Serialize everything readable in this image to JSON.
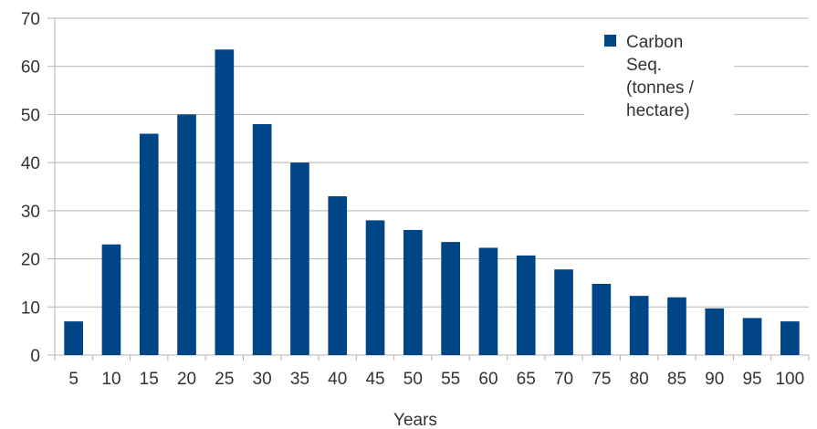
{
  "chart_data": {
    "type": "bar",
    "title": "",
    "xlabel": "Years",
    "ylabel": "",
    "categories": [
      "5",
      "10",
      "15",
      "20",
      "25",
      "30",
      "35",
      "40",
      "45",
      "50",
      "55",
      "60",
      "65",
      "70",
      "75",
      "80",
      "85",
      "90",
      "95",
      "100"
    ],
    "series": [
      {
        "name": "Carbon Seq. (tonnes / hectare)",
        "values": [
          7,
          23,
          46,
          50,
          63.5,
          48,
          40,
          33,
          28,
          26,
          23.5,
          22.3,
          20.7,
          17.8,
          14.8,
          12.3,
          12,
          9.7,
          7.7,
          7
        ],
        "color": "#004586"
      }
    ],
    "ylim": [
      0,
      70
    ],
    "yticks": [
      0,
      10,
      20,
      30,
      40,
      50,
      60,
      70
    ],
    "grid": true,
    "legend_position": "top-right",
    "legend_lines": [
      "Carbon",
      "Seq.",
      "(tonnes /",
      "hectare)"
    ]
  },
  "colors": {
    "bar": "#004586",
    "grid": "#b3b3b3",
    "text": "#333333",
    "background": "#ffffff"
  }
}
